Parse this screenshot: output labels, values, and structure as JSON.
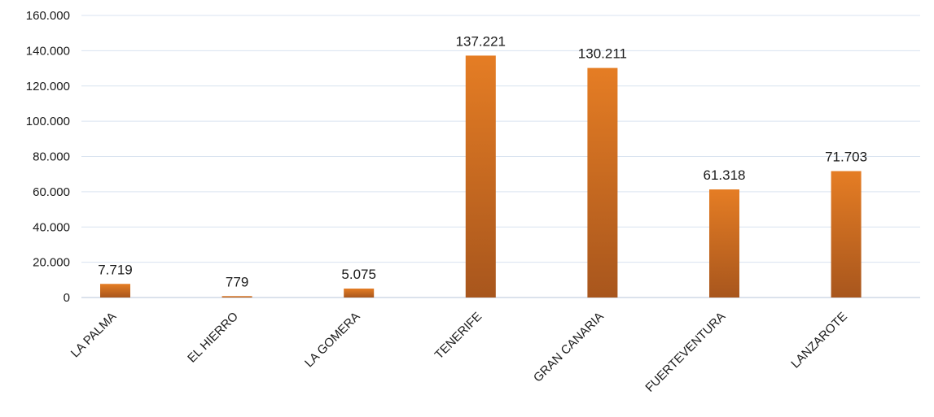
{
  "chart_data": {
    "type": "bar",
    "categories": [
      "LA PALMA",
      "EL HIERRO",
      "LA GOMERA",
      "TENERIFE",
      "GRAN CANARIA",
      "FUERTEVENTURA",
      "LANZAROTE"
    ],
    "values": [
      7719,
      779,
      5075,
      137221,
      130211,
      61318,
      71703
    ],
    "data_labels": [
      "7.719",
      "779",
      "5.075",
      "137.221",
      "130.211",
      "61.318",
      "71.703"
    ],
    "y_ticks": [
      0,
      20000,
      40000,
      60000,
      80000,
      100000,
      120000,
      140000,
      160000
    ],
    "y_tick_labels": [
      "0",
      "20.000",
      "40.000",
      "60.000",
      "80.000",
      "100.000",
      "120.000",
      "140.000",
      "160.000"
    ],
    "ylim": [
      0,
      160000
    ],
    "grid": true,
    "legend": "none",
    "colors": {
      "bar_top": "#e57d24",
      "bar_bottom": "#a8561d",
      "gridline": "#d9e3f0"
    }
  }
}
